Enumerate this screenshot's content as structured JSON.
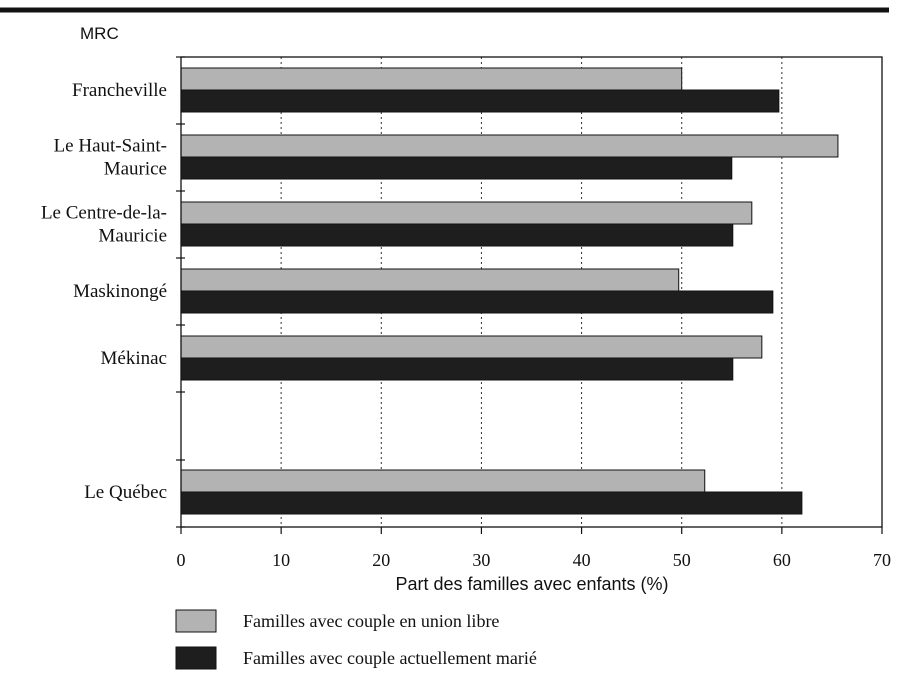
{
  "chart_data": {
    "type": "bar",
    "orientation": "horizontal",
    "title": "",
    "category_axis_label": "MRC",
    "xlabel": "Part des familles avec enfants (%)",
    "xlim": [
      0,
      70
    ],
    "xticks": [
      "0",
      "10",
      "20",
      "30",
      "40",
      "50",
      "60",
      "70"
    ],
    "grid": "dotted vertical lines at 10, 20, 30, 40, 50, 60",
    "legend_placement": "bottom-left",
    "categories": [
      [
        "Francheville"
      ],
      [
        "Le Haut-Saint-",
        "Maurice"
      ],
      [
        "Le Centre-de-la-",
        "Mauricie"
      ],
      [
        "Maskinongé"
      ],
      [
        "Mékinac"
      ],
      [
        "Le Québec"
      ]
    ],
    "series": [
      {
        "name": "Familles avec couple en union libre",
        "color": "#b3b3b3",
        "values": [
          50.0,
          65.6,
          57.0,
          49.7,
          58.0,
          52.3
        ]
      },
      {
        "name": "Familles avec couple actuellement marié",
        "color": "#1e1e1e",
        "values": [
          59.7,
          55.0,
          55.1,
          59.1,
          55.1,
          62.0
        ]
      }
    ]
  }
}
